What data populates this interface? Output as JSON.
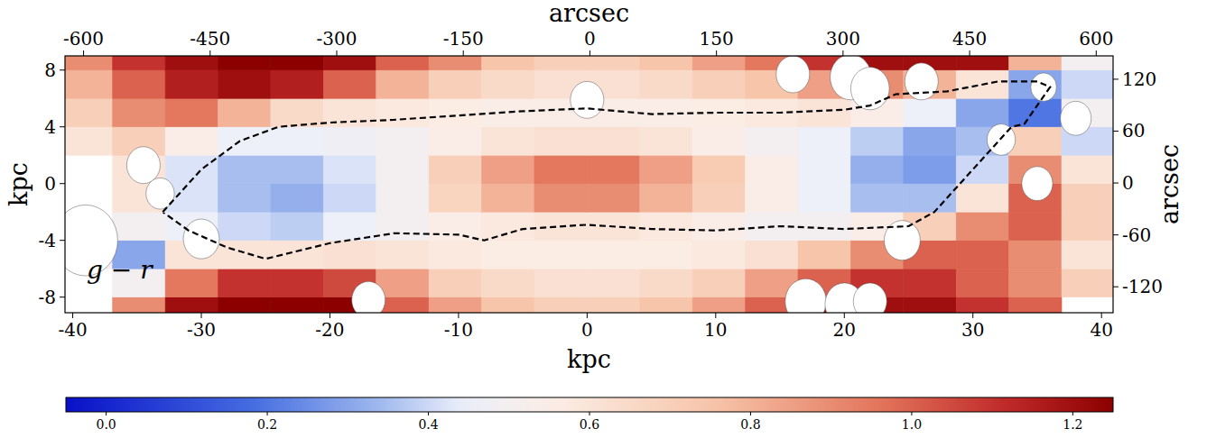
{
  "chart_data": {
    "type": "heatmap",
    "annotation": "g − r",
    "xlabel": "kpc",
    "ylabel": "kpc",
    "x2label": "arcsec",
    "y2label": "arcsec",
    "xlim": [
      -40.6,
      40.9
    ],
    "ylim": [
      -9.1,
      9.0
    ],
    "xticks": [
      -40,
      -30,
      -20,
      -10,
      0,
      10,
      20,
      30,
      40
    ],
    "yticks": [
      -8,
      -4,
      0,
      4,
      8
    ],
    "x2lim": [
      -622,
      620
    ],
    "x2ticks": [
      -600,
      -450,
      -300,
      -150,
      0,
      150,
      300,
      450,
      600
    ],
    "y2lim": [
      -150,
      147
    ],
    "y2ticks": [
      -120,
      -60,
      0,
      60,
      120
    ],
    "heatmap": {
      "x_edges": [
        -41,
        -36.9,
        -32.8,
        -28.7,
        -24.6,
        -20.5,
        -16.4,
        -12.3,
        -8.2,
        -4.1,
        0,
        4.1,
        8.2,
        12.3,
        16.4,
        20.5,
        24.6,
        28.7,
        32.8,
        36.9,
        41
      ],
      "y_edges": [
        -10,
        -8,
        -6,
        -4,
        -2,
        0,
        2,
        4,
        6,
        8,
        10
      ],
      "cells": [
        [
          null,
          0.9,
          1.2,
          1.25,
          1.25,
          1.25,
          1.0,
          0.85,
          0.75,
          0.7,
          0.7,
          0.75,
          0.85,
          1.0,
          1.2,
          1.2,
          1.2,
          1.1,
          1.0,
          null
        ],
        [
          null,
          0.5,
          0.95,
          1.1,
          1.1,
          1.05,
          0.85,
          0.7,
          0.65,
          0.62,
          0.62,
          0.65,
          0.7,
          0.85,
          1.0,
          1.1,
          1.1,
          1.0,
          0.9,
          0.7
        ],
        [
          0.5,
          0.3,
          0.6,
          0.6,
          0.6,
          0.62,
          0.6,
          0.58,
          0.56,
          0.56,
          0.56,
          0.56,
          0.58,
          0.62,
          0.75,
          0.9,
          1.0,
          1.0,
          0.9,
          0.6
        ],
        [
          null,
          0.5,
          0.45,
          0.4,
          0.38,
          0.45,
          0.5,
          0.55,
          0.58,
          0.6,
          0.6,
          0.58,
          0.55,
          0.5,
          0.5,
          0.55,
          0.7,
          0.9,
          1.0,
          0.7
        ],
        [
          null,
          0.6,
          0.42,
          0.35,
          0.32,
          0.4,
          0.5,
          0.68,
          0.8,
          0.9,
          0.9,
          0.8,
          0.7,
          0.55,
          0.45,
          0.35,
          0.35,
          0.6,
          1.0,
          0.7
        ],
        [
          null,
          0.6,
          0.42,
          0.35,
          0.35,
          0.42,
          0.5,
          0.7,
          0.85,
          0.95,
          0.95,
          0.85,
          0.72,
          0.55,
          0.45,
          0.32,
          0.28,
          0.4,
          0.9,
          0.6
        ],
        [
          0.6,
          0.7,
          0.55,
          0.45,
          0.45,
          0.47,
          0.5,
          0.55,
          0.6,
          0.62,
          0.62,
          0.6,
          0.55,
          0.5,
          0.45,
          0.38,
          0.3,
          0.35,
          0.7,
          0.4
        ],
        [
          0.7,
          0.9,
          0.95,
          0.8,
          0.65,
          0.6,
          0.58,
          0.56,
          0.55,
          0.55,
          0.55,
          0.55,
          0.56,
          0.58,
          0.6,
          0.55,
          0.45,
          0.3,
          0.2,
          0.5
        ],
        [
          0.8,
          1.0,
          1.15,
          1.2,
          1.15,
          1.0,
          0.8,
          0.7,
          0.65,
          0.62,
          0.62,
          0.65,
          0.7,
          0.75,
          0.85,
          0.9,
          0.8,
          0.6,
          0.3,
          0.4
        ],
        [
          0.9,
          1.1,
          1.2,
          1.25,
          1.25,
          1.2,
          1.0,
          0.9,
          0.75,
          0.7,
          0.7,
          0.75,
          0.85,
          0.95,
          1.1,
          1.2,
          1.2,
          1.2,
          0.8,
          0.5
        ]
      ]
    },
    "masks": [
      {
        "x": 0,
        "y": 5.9,
        "r": 1.3
      },
      {
        "x": -34.5,
        "y": 1.3,
        "r": 1.3
      },
      {
        "x": -33.2,
        "y": -0.7,
        "r": 1.1
      },
      {
        "x": -30,
        "y": -3.9,
        "r": 1.4
      },
      {
        "x": -39,
        "y": -4,
        "r": 2.5
      },
      {
        "x": 16,
        "y": 7.7,
        "r": 1.3
      },
      {
        "x": 20.5,
        "y": 7.5,
        "r": 1.6
      },
      {
        "x": 22,
        "y": 6.7,
        "r": 1.5
      },
      {
        "x": 26,
        "y": 7.2,
        "r": 1.3
      },
      {
        "x": 32.2,
        "y": 3.1,
        "r": 1.1
      },
      {
        "x": 35.5,
        "y": 6.8,
        "r": 1.0
      },
      {
        "x": 38,
        "y": 4.6,
        "r": 1.2
      },
      {
        "x": 35,
        "y": 0,
        "r": 1.2
      },
      {
        "x": 24.5,
        "y": -4,
        "r": 1.4
      },
      {
        "x": 17,
        "y": -8.3,
        "r": 1.6
      },
      {
        "x": 20,
        "y": -8.5,
        "r": 1.5
      },
      {
        "x": 22,
        "y": -8.3,
        "r": 1.3
      },
      {
        "x": -17,
        "y": -8.2,
        "r": 1.3
      }
    ],
    "contour": {
      "x": [
        -33,
        -30,
        -27,
        -24,
        -20,
        -15,
        -10,
        -5,
        0,
        5,
        10,
        15,
        20,
        22,
        24,
        28,
        32,
        35,
        36,
        34,
        33,
        30,
        27,
        25,
        20,
        15,
        10,
        5,
        0,
        -5,
        -8,
        -10,
        -15,
        -20,
        -25,
        -28,
        -31,
        -33
      ],
      "y": [
        -2,
        1,
        3,
        4,
        4.3,
        4.5,
        4.8,
        5.1,
        5.3,
        4.9,
        5.0,
        5.0,
        5.2,
        5.5,
        6.3,
        6.5,
        7.2,
        7.2,
        6.8,
        4.2,
        4,
        1,
        -2,
        -3,
        -3.2,
        -3,
        -3.3,
        -3.2,
        -2.9,
        -3.2,
        -4,
        -3.6,
        -3.5,
        -4.2,
        -5.3,
        -4.5,
        -3.3,
        -2
      ]
    },
    "colorbar": {
      "range": [
        -0.05,
        1.25
      ],
      "ticks": [
        {
          "value": 0,
          "label": "0.0"
        },
        0.2,
        0.4,
        0.6,
        0.8,
        {
          "value": 1,
          "label": "1.0"
        },
        1.2
      ]
    }
  }
}
